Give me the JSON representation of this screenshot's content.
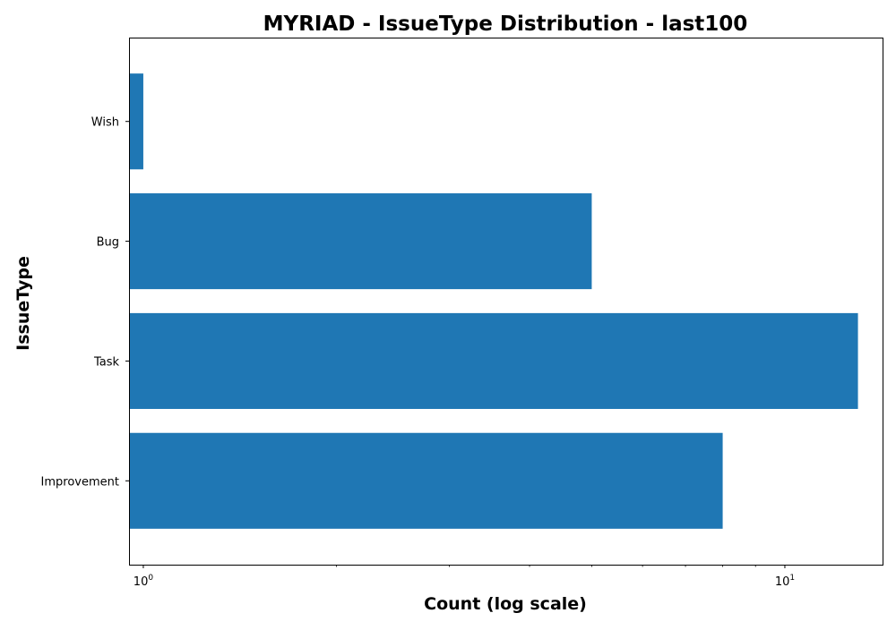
{
  "chart_data": {
    "type": "bar",
    "orientation": "horizontal",
    "title": "MYRIAD - IssueType Distribution - last100",
    "xlabel": "Count (log scale)",
    "ylabel": "IssueType",
    "x_scale": "log",
    "xlim": [
      0.95,
      14.2
    ],
    "categories": [
      "Improvement",
      "Task",
      "Bug",
      "Wish"
    ],
    "values": [
      8,
      13,
      5,
      1
    ],
    "x_major_ticks": [
      {
        "base": "10",
        "exponent": "0",
        "value": 1
      },
      {
        "base": "10",
        "exponent": "1",
        "value": 10
      }
    ],
    "x_minor_ticks": [
      2,
      3,
      4,
      5,
      6,
      7,
      8,
      9
    ],
    "grid": false,
    "legend": "none",
    "bar_color": "#1f77b4"
  }
}
